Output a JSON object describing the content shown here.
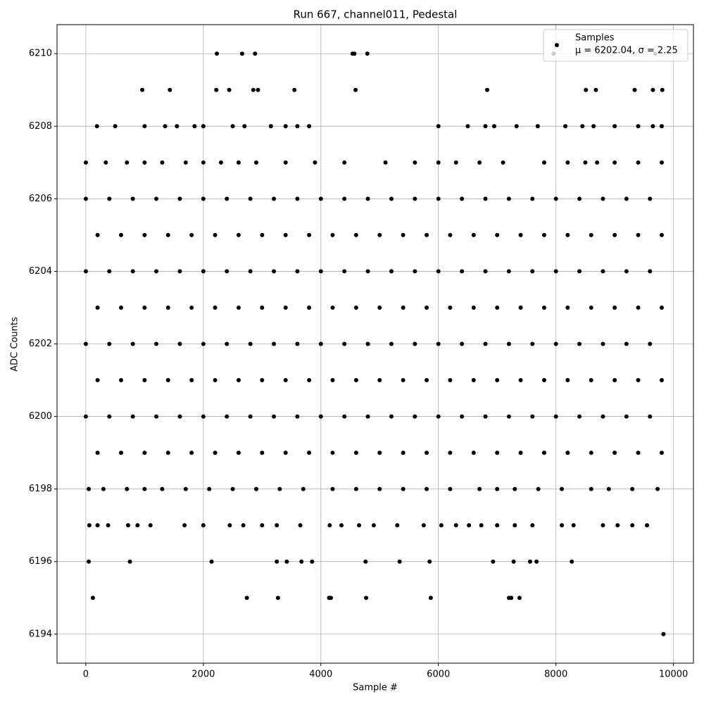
{
  "chart_data": {
    "type": "scatter",
    "title": "Run 667, channel011, Pedestal",
    "x_label": "Sample #",
    "y_label": "ADC Counts",
    "xlim": [
      -490,
      10340
    ],
    "ylim": [
      6193.2,
      6210.8
    ],
    "xticks": [
      0,
      2000,
      4000,
      6000,
      8000,
      10000
    ],
    "yticks": [
      6194,
      6196,
      6198,
      6200,
      6202,
      6204,
      6206,
      6208,
      6210
    ],
    "grid": true,
    "legend_position": "upper right",
    "legend_text": "μ = 6202.04, σ = 2.25",
    "series": [
      {
        "name": "Samples",
        "color": "#000000",
        "x": [
          0,
          400,
          800,
          1200,
          1600,
          2000,
          2400,
          2800,
          3200,
          3600,
          4000,
          4400,
          4800,
          5200,
          5600,
          6000,
          6400,
          6800,
          7200,
          7600,
          8000,
          8400,
          8800,
          9200,
          9600,
          200,
          600,
          1000,
          1400,
          1800,
          2200,
          2600,
          3000,
          3400,
          3800,
          4200,
          4600,
          5000,
          5400,
          5800,
          6200,
          6600,
          7000,
          7400,
          7800,
          8200,
          8600,
          9000,
          9400,
          9800,
          0,
          400,
          800,
          1200,
          1600,
          2000,
          2400,
          2800,
          3200,
          3600,
          4000,
          4400,
          4800,
          5200,
          5600,
          6000,
          6400,
          6800,
          7200,
          7600,
          8000,
          8400,
          8800,
          9200,
          9600,
          200,
          600,
          1000,
          1400,
          1800,
          2200,
          2600,
          3000,
          3400,
          3800,
          4200,
          4600,
          5000,
          5400,
          5800,
          6200,
          6600,
          7000,
          7400,
          7800,
          8200,
          8600,
          9000,
          9400,
          9800,
          0,
          400,
          800,
          1200,
          1600,
          2000,
          2400,
          2800,
          3200,
          3600,
          4000,
          4400,
          4800,
          5200,
          5600,
          6000,
          6400,
          6800,
          7200,
          7600,
          8000,
          8400,
          8800,
          9200,
          9600,
          200,
          600,
          1000,
          1400,
          1800,
          2200,
          2600,
          3000,
          3400,
          3800,
          4200,
          4600,
          5000,
          5400,
          5800,
          6200,
          6600,
          7000,
          7400,
          7800,
          8200,
          8600,
          9000,
          9400,
          9800,
          0,
          400,
          800,
          1200,
          1600,
          2000,
          2400,
          2800,
          3200,
          3600,
          4000,
          4400,
          4800,
          5200,
          5600,
          6000,
          6400,
          6800,
          7200,
          7600,
          8000,
          8400,
          8800,
          9200,
          9600,
          200,
          600,
          1000,
          1400,
          1800,
          2200,
          2600,
          3000,
          3400,
          3800,
          4200,
          4600,
          5000,
          5400,
          5800,
          6200,
          6600,
          7000,
          7400,
          7800,
          8200,
          8600,
          9000,
          9400,
          9800,
          0,
          340,
          700,
          1000,
          1300,
          1700,
          2000,
          2300,
          2600,
          2900,
          3400,
          3900,
          4400,
          5100,
          5600,
          6000,
          6300,
          6700,
          7100,
          7800,
          8200,
          8500,
          8700,
          9000,
          9400,
          9800,
          50,
          300,
          700,
          1000,
          1300,
          1700,
          2100,
          2500,
          2900,
          3300,
          3700,
          4200,
          4600,
          5000,
          5400,
          5800,
          6200,
          6700,
          7000,
          7300,
          7700,
          8100,
          8600,
          8900,
          9300,
          9730,
          60,
          200,
          380,
          720,
          880,
          1100,
          1680,
          2000,
          2450,
          2680,
          3000,
          3250,
          3650,
          4150,
          4350,
          4650,
          4900,
          5300,
          5750,
          6050,
          6300,
          6520,
          6730,
          7000,
          7300,
          7600,
          8100,
          8300,
          8800,
          9050,
          9300,
          9550,
          190,
          500,
          1000,
          1350,
          1550,
          1850,
          2000,
          2500,
          2700,
          3150,
          3400,
          3600,
          3800,
          6000,
          6500,
          6800,
          6950,
          7330,
          7690,
          8160,
          8450,
          8640,
          9000,
          9400,
          9650,
          9800,
          960,
          1430,
          2220,
          2440,
          2850,
          2930,
          3550,
          4590,
          6830,
          8510,
          8680,
          9340,
          9650,
          9810,
          2230,
          2660,
          2880,
          4540,
          4570,
          4790,
          7960,
          9690,
          50,
          750,
          2140,
          3250,
          3420,
          3670,
          3850,
          4760,
          5340,
          5850,
          6930,
          7280,
          7560,
          7670,
          8270,
          120,
          2740,
          3270,
          4140,
          4170,
          4770,
          5870,
          7200,
          7240,
          7380,
          9830
        ],
        "y": [
          6206,
          6206,
          6206,
          6206,
          6206,
          6206,
          6206,
          6206,
          6206,
          6206,
          6206,
          6206,
          6206,
          6206,
          6206,
          6206,
          6206,
          6206,
          6206,
          6206,
          6206,
          6206,
          6206,
          6206,
          6206,
          6205,
          6205,
          6205,
          6205,
          6205,
          6205,
          6205,
          6205,
          6205,
          6205,
          6205,
          6205,
          6205,
          6205,
          6205,
          6205,
          6205,
          6205,
          6205,
          6205,
          6205,
          6205,
          6205,
          6205,
          6205,
          6204,
          6204,
          6204,
          6204,
          6204,
          6204,
          6204,
          6204,
          6204,
          6204,
          6204,
          6204,
          6204,
          6204,
          6204,
          6204,
          6204,
          6204,
          6204,
          6204,
          6204,
          6204,
          6204,
          6204,
          6204,
          6203,
          6203,
          6203,
          6203,
          6203,
          6203,
          6203,
          6203,
          6203,
          6203,
          6203,
          6203,
          6203,
          6203,
          6203,
          6203,
          6203,
          6203,
          6203,
          6203,
          6203,
          6203,
          6203,
          6203,
          6203,
          6202,
          6202,
          6202,
          6202,
          6202,
          6202,
          6202,
          6202,
          6202,
          6202,
          6202,
          6202,
          6202,
          6202,
          6202,
          6202,
          6202,
          6202,
          6202,
          6202,
          6202,
          6202,
          6202,
          6202,
          6202,
          6201,
          6201,
          6201,
          6201,
          6201,
          6201,
          6201,
          6201,
          6201,
          6201,
          6201,
          6201,
          6201,
          6201,
          6201,
          6201,
          6201,
          6201,
          6201,
          6201,
          6201,
          6201,
          6201,
          6201,
          6201,
          6200,
          6200,
          6200,
          6200,
          6200,
          6200,
          6200,
          6200,
          6200,
          6200,
          6200,
          6200,
          6200,
          6200,
          6200,
          6200,
          6200,
          6200,
          6200,
          6200,
          6200,
          6200,
          6200,
          6200,
          6200,
          6199,
          6199,
          6199,
          6199,
          6199,
          6199,
          6199,
          6199,
          6199,
          6199,
          6199,
          6199,
          6199,
          6199,
          6199,
          6199,
          6199,
          6199,
          6199,
          6199,
          6199,
          6199,
          6199,
          6199,
          6199,
          6207,
          6207,
          6207,
          6207,
          6207,
          6207,
          6207,
          6207,
          6207,
          6207,
          6207,
          6207,
          6207,
          6207,
          6207,
          6207,
          6207,
          6207,
          6207,
          6207,
          6207,
          6207,
          6207,
          6207,
          6207,
          6207,
          6198,
          6198,
          6198,
          6198,
          6198,
          6198,
          6198,
          6198,
          6198,
          6198,
          6198,
          6198,
          6198,
          6198,
          6198,
          6198,
          6198,
          6198,
          6198,
          6198,
          6198,
          6198,
          6198,
          6198,
          6198,
          6198,
          6197,
          6197,
          6197,
          6197,
          6197,
          6197,
          6197,
          6197,
          6197,
          6197,
          6197,
          6197,
          6197,
          6197,
          6197,
          6197,
          6197,
          6197,
          6197,
          6197,
          6197,
          6197,
          6197,
          6197,
          6197,
          6197,
          6197,
          6197,
          6197,
          6197,
          6197,
          6197,
          6208,
          6208,
          6208,
          6208,
          6208,
          6208,
          6208,
          6208,
          6208,
          6208,
          6208,
          6208,
          6208,
          6208,
          6208,
          6208,
          6208,
          6208,
          6208,
          6208,
          6208,
          6208,
          6208,
          6208,
          6208,
          6208,
          6209,
          6209,
          6209,
          6209,
          6209,
          6209,
          6209,
          6209,
          6209,
          6209,
          6209,
          6209,
          6209,
          6209,
          6210,
          6210,
          6210,
          6210,
          6210,
          6210,
          6210,
          6210,
          6196,
          6196,
          6196,
          6196,
          6196,
          6196,
          6196,
          6196,
          6196,
          6196,
          6196,
          6196,
          6196,
          6196,
          6196,
          6195,
          6195,
          6195,
          6195,
          6195,
          6195,
          6195,
          6195,
          6195,
          6195,
          6194
        ]
      }
    ]
  }
}
